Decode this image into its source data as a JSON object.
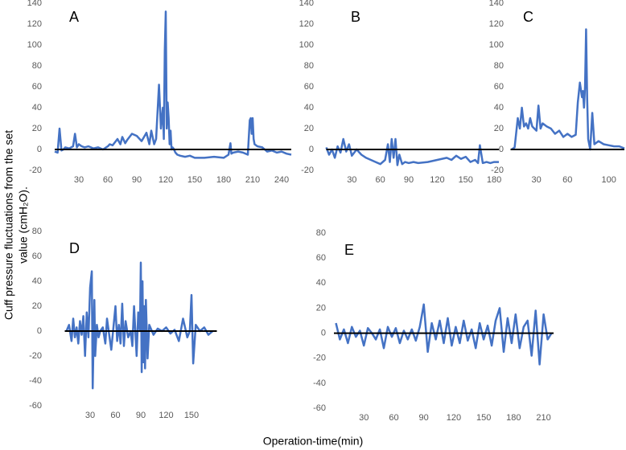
{
  "chart_data": [
    {
      "type": "line",
      "title": "A",
      "color": "#4472c4",
      "xlim": [
        5,
        250
      ],
      "ylim": [
        -20,
        140
      ],
      "xticks": [
        30,
        60,
        90,
        120,
        150,
        180,
        210,
        240
      ],
      "yticks": [
        -20,
        0,
        20,
        40,
        60,
        80,
        100,
        120,
        140
      ],
      "x": [
        5,
        8,
        10,
        12,
        14,
        16,
        20,
        24,
        26,
        28,
        30,
        33,
        36,
        40,
        45,
        50,
        55,
        60,
        62,
        65,
        70,
        73,
        75,
        78,
        80,
        85,
        90,
        95,
        100,
        103,
        105,
        108,
        110,
        113,
        115,
        117,
        118,
        119,
        120,
        121,
        122,
        123,
        124,
        125,
        126,
        127,
        128,
        130,
        132,
        135,
        140,
        145,
        150,
        160,
        170,
        180,
        185,
        187,
        188,
        190,
        195,
        200,
        205,
        207,
        208,
        209,
        210,
        211,
        212,
        215,
        220,
        225,
        230,
        235,
        240,
        245,
        250
      ],
      "values": [
        -2,
        -3,
        20,
        -1,
        0,
        2,
        1,
        3,
        15,
        2,
        5,
        3,
        2,
        3,
        1,
        2,
        0,
        3,
        5,
        4,
        10,
        5,
        12,
        6,
        9,
        15,
        13,
        8,
        16,
        5,
        18,
        5,
        10,
        62,
        20,
        40,
        10,
        95,
        132,
        20,
        45,
        30,
        5,
        18,
        0,
        2,
        1,
        -3,
        -5,
        -6,
        -7,
        -6,
        -8,
        -8,
        -7,
        -8,
        -5,
        6,
        -4,
        -3,
        -2,
        -3,
        -5,
        28,
        30,
        15,
        30,
        10,
        5,
        3,
        2,
        -2,
        -1,
        -3,
        -2,
        -4,
        -5
      ]
    },
    {
      "type": "line",
      "title": "B",
      "color": "#4472c4",
      "xlim": [
        3,
        185
      ],
      "ylim": [
        -20,
        140
      ],
      "xticks": [
        30,
        60,
        90,
        120,
        150,
        180
      ],
      "yticks": [
        -20,
        0,
        20,
        40,
        60,
        80,
        100,
        120,
        140
      ],
      "x": [
        3,
        6,
        9,
        12,
        15,
        18,
        21,
        24,
        27,
        30,
        35,
        40,
        45,
        50,
        55,
        60,
        65,
        68,
        70,
        72,
        74,
        76,
        78,
        80,
        83,
        86,
        90,
        95,
        100,
        110,
        120,
        130,
        135,
        140,
        145,
        150,
        155,
        160,
        163,
        165,
        168,
        172,
        176,
        180,
        185
      ],
      "values": [
        2,
        -5,
        0,
        -8,
        3,
        -3,
        10,
        -2,
        5,
        -6,
        0,
        -5,
        -8,
        -10,
        -12,
        -14,
        -10,
        5,
        -12,
        10,
        -8,
        10,
        -15,
        -5,
        -14,
        -12,
        -13,
        -12,
        -13,
        -12,
        -10,
        -8,
        -10,
        -6,
        -9,
        -7,
        -12,
        -10,
        -13,
        4,
        -13,
        -12,
        -13,
        -12,
        -12
      ]
    },
    {
      "type": "line",
      "title": "C",
      "color": "#4472c4",
      "xlim": [
        5,
        115
      ],
      "ylim": [
        -20,
        140
      ],
      "xticks": [
        30,
        60,
        100
      ],
      "yticks": [
        -20,
        0,
        20,
        40,
        60,
        80,
        100,
        120,
        140
      ],
      "x": [
        6,
        9,
        12,
        14,
        16,
        18,
        20,
        22,
        24,
        26,
        28,
        30,
        32,
        34,
        36,
        40,
        44,
        48,
        52,
        56,
        60,
        64,
        68,
        70,
        72,
        74,
        75,
        76,
        77,
        78,
        79,
        80,
        82,
        84,
        86,
        90,
        95,
        100,
        105,
        110,
        115
      ],
      "values": [
        0,
        2,
        30,
        20,
        40,
        22,
        25,
        20,
        30,
        22,
        20,
        18,
        42,
        20,
        25,
        22,
        20,
        15,
        18,
        12,
        15,
        12,
        14,
        45,
        64,
        50,
        56,
        40,
        60,
        115,
        50,
        10,
        0,
        35,
        5,
        8,
        5,
        4,
        3,
        3,
        1
      ]
    },
    {
      "type": "line",
      "title": "D",
      "color": "#4472c4",
      "xlim": [
        0,
        180
      ],
      "ylim": [
        -60,
        80
      ],
      "xticks": [
        30,
        60,
        90,
        120,
        150
      ],
      "yticks": [
        -60,
        -40,
        -20,
        0,
        20,
        40,
        60,
        80
      ],
      "x": [
        2,
        5,
        8,
        10,
        12,
        14,
        16,
        18,
        20,
        22,
        24,
        26,
        28,
        30,
        32,
        33,
        34,
        35,
        36,
        38,
        40,
        42,
        45,
        48,
        50,
        55,
        60,
        62,
        64,
        66,
        68,
        70,
        72,
        75,
        78,
        80,
        82,
        85,
        87,
        89,
        90,
        91,
        92,
        93,
        94,
        95,
        96,
        98,
        100,
        105,
        110,
        115,
        120,
        125,
        130,
        135,
        140,
        145,
        148,
        150,
        152,
        155,
        160,
        165,
        170,
        175
      ],
      "values": [
        0,
        5,
        -8,
        10,
        -5,
        3,
        -10,
        8,
        -3,
        12,
        -20,
        15,
        -5,
        35,
        48,
        -46,
        -10,
        25,
        -20,
        5,
        -5,
        0,
        3,
        -10,
        10,
        -15,
        20,
        -8,
        5,
        -10,
        22,
        -12,
        8,
        -5,
        0,
        -12,
        20,
        -20,
        15,
        0,
        55,
        -33,
        40,
        -25,
        20,
        -30,
        25,
        -22,
        5,
        -3,
        2,
        0,
        3,
        -2,
        1,
        -8,
        10,
        -5,
        0,
        29,
        -26,
        5,
        0,
        3,
        -3,
        0
      ]
    },
    {
      "type": "line",
      "title": "E",
      "color": "#4472c4",
      "xlim": [
        0,
        220
      ],
      "ylim": [
        -60,
        80
      ],
      "xticks": [
        30,
        60,
        90,
        120,
        150,
        180,
        210
      ],
      "yticks": [
        -60,
        -40,
        -20,
        0,
        20,
        40,
        60,
        80
      ],
      "x": [
        2,
        6,
        10,
        14,
        18,
        22,
        26,
        30,
        34,
        38,
        42,
        46,
        50,
        54,
        58,
        62,
        66,
        70,
        74,
        78,
        82,
        86,
        90,
        94,
        98,
        102,
        106,
        110,
        114,
        118,
        122,
        126,
        130,
        134,
        138,
        142,
        146,
        150,
        154,
        158,
        162,
        166,
        170,
        174,
        178,
        182,
        186,
        190,
        194,
        198,
        202,
        206,
        210,
        214,
        218
      ],
      "values": [
        8,
        -5,
        3,
        -8,
        5,
        -3,
        2,
        -10,
        4,
        0,
        -5,
        3,
        -12,
        5,
        -3,
        4,
        -8,
        2,
        -5,
        3,
        -6,
        5,
        23,
        -15,
        8,
        -5,
        10,
        -8,
        12,
        -10,
        5,
        -8,
        10,
        -6,
        3,
        -12,
        8,
        -5,
        6,
        -10,
        10,
        20,
        -15,
        12,
        -8,
        15,
        -12,
        5,
        10,
        -18,
        18,
        -25,
        15,
        -5,
        0
      ]
    }
  ],
  "y_label": [
    "Cuff pressure fluctuations from the set",
    "value (cmH₂O)."
  ],
  "x_label": "Operation-time(min)"
}
